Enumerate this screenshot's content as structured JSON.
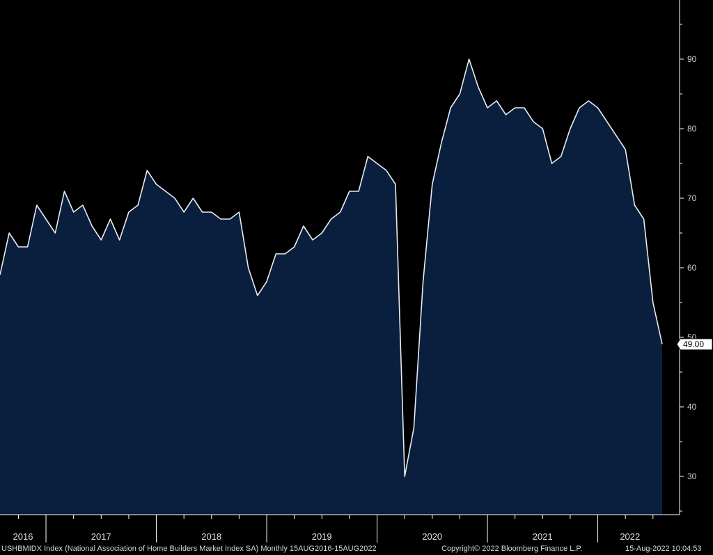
{
  "chart_data": {
    "type": "area",
    "title": "",
    "xlabel": "",
    "ylabel": "",
    "ylim": [
      24.5,
      98.5
    ],
    "yticks": [
      30,
      40,
      50,
      60,
      70,
      80,
      90
    ],
    "x_range": [
      "2016-08",
      "2022-08"
    ],
    "year_labels": [
      "2016",
      "2017",
      "2018",
      "2019",
      "2020",
      "2021",
      "2022"
    ],
    "last_value_label": "49.00",
    "colors": {
      "background": "#000000",
      "fill": "#0a1f3d",
      "line": "#e8ecf2",
      "axis": "#ffffff"
    },
    "grid": false,
    "series": [
      {
        "x": [
          "2016-08",
          "2016-09",
          "2016-10",
          "2016-11",
          "2016-12",
          "2017-01",
          "2017-02",
          "2017-03",
          "2017-04",
          "2017-05",
          "2017-06",
          "2017-07",
          "2017-08",
          "2017-09",
          "2017-10",
          "2017-11",
          "2017-12",
          "2018-01",
          "2018-02",
          "2018-03",
          "2018-04",
          "2018-05",
          "2018-06",
          "2018-07",
          "2018-08",
          "2018-09",
          "2018-10",
          "2018-11",
          "2018-12",
          "2019-01",
          "2019-02",
          "2019-03",
          "2019-04",
          "2019-05",
          "2019-06",
          "2019-07",
          "2019-08",
          "2019-09",
          "2019-10",
          "2019-11",
          "2019-12",
          "2020-01",
          "2020-02",
          "2020-03",
          "2020-04",
          "2020-05",
          "2020-06",
          "2020-07",
          "2020-08",
          "2020-09",
          "2020-10",
          "2020-11",
          "2020-12",
          "2021-01",
          "2021-02",
          "2021-03",
          "2021-04",
          "2021-05",
          "2021-06",
          "2021-07",
          "2021-08",
          "2021-09",
          "2021-10",
          "2021-11",
          "2021-12",
          "2022-01",
          "2022-02",
          "2022-03",
          "2022-04",
          "2022-05",
          "2022-06",
          "2022-07",
          "2022-08"
        ],
        "values": [
          59,
          65,
          63,
          63,
          69,
          67,
          65,
          71,
          68,
          69,
          66,
          64,
          67,
          64,
          68,
          69,
          74,
          72,
          71,
          70,
          68,
          70,
          68,
          68,
          67,
          67,
          68,
          60,
          56,
          58,
          62,
          62,
          63,
          66,
          64,
          65,
          67,
          68,
          71,
          71,
          76,
          75,
          74,
          72,
          30,
          37,
          58,
          72,
          78,
          83,
          85,
          90,
          86,
          83,
          84,
          82,
          83,
          83,
          81,
          80,
          75,
          76,
          80,
          83,
          84,
          83,
          81,
          79,
          77,
          69,
          67,
          55,
          49
        ]
      }
    ]
  },
  "footer": {
    "description": "USHBMIDX Index (National Association of Home Builders Market Index SA)  Monthly 15AUG2016-15AUG2022",
    "copyright": "Copyright© 2022 Bloomberg Finance L.P.",
    "timestamp": "15-Aug-2022 10:04:53"
  }
}
